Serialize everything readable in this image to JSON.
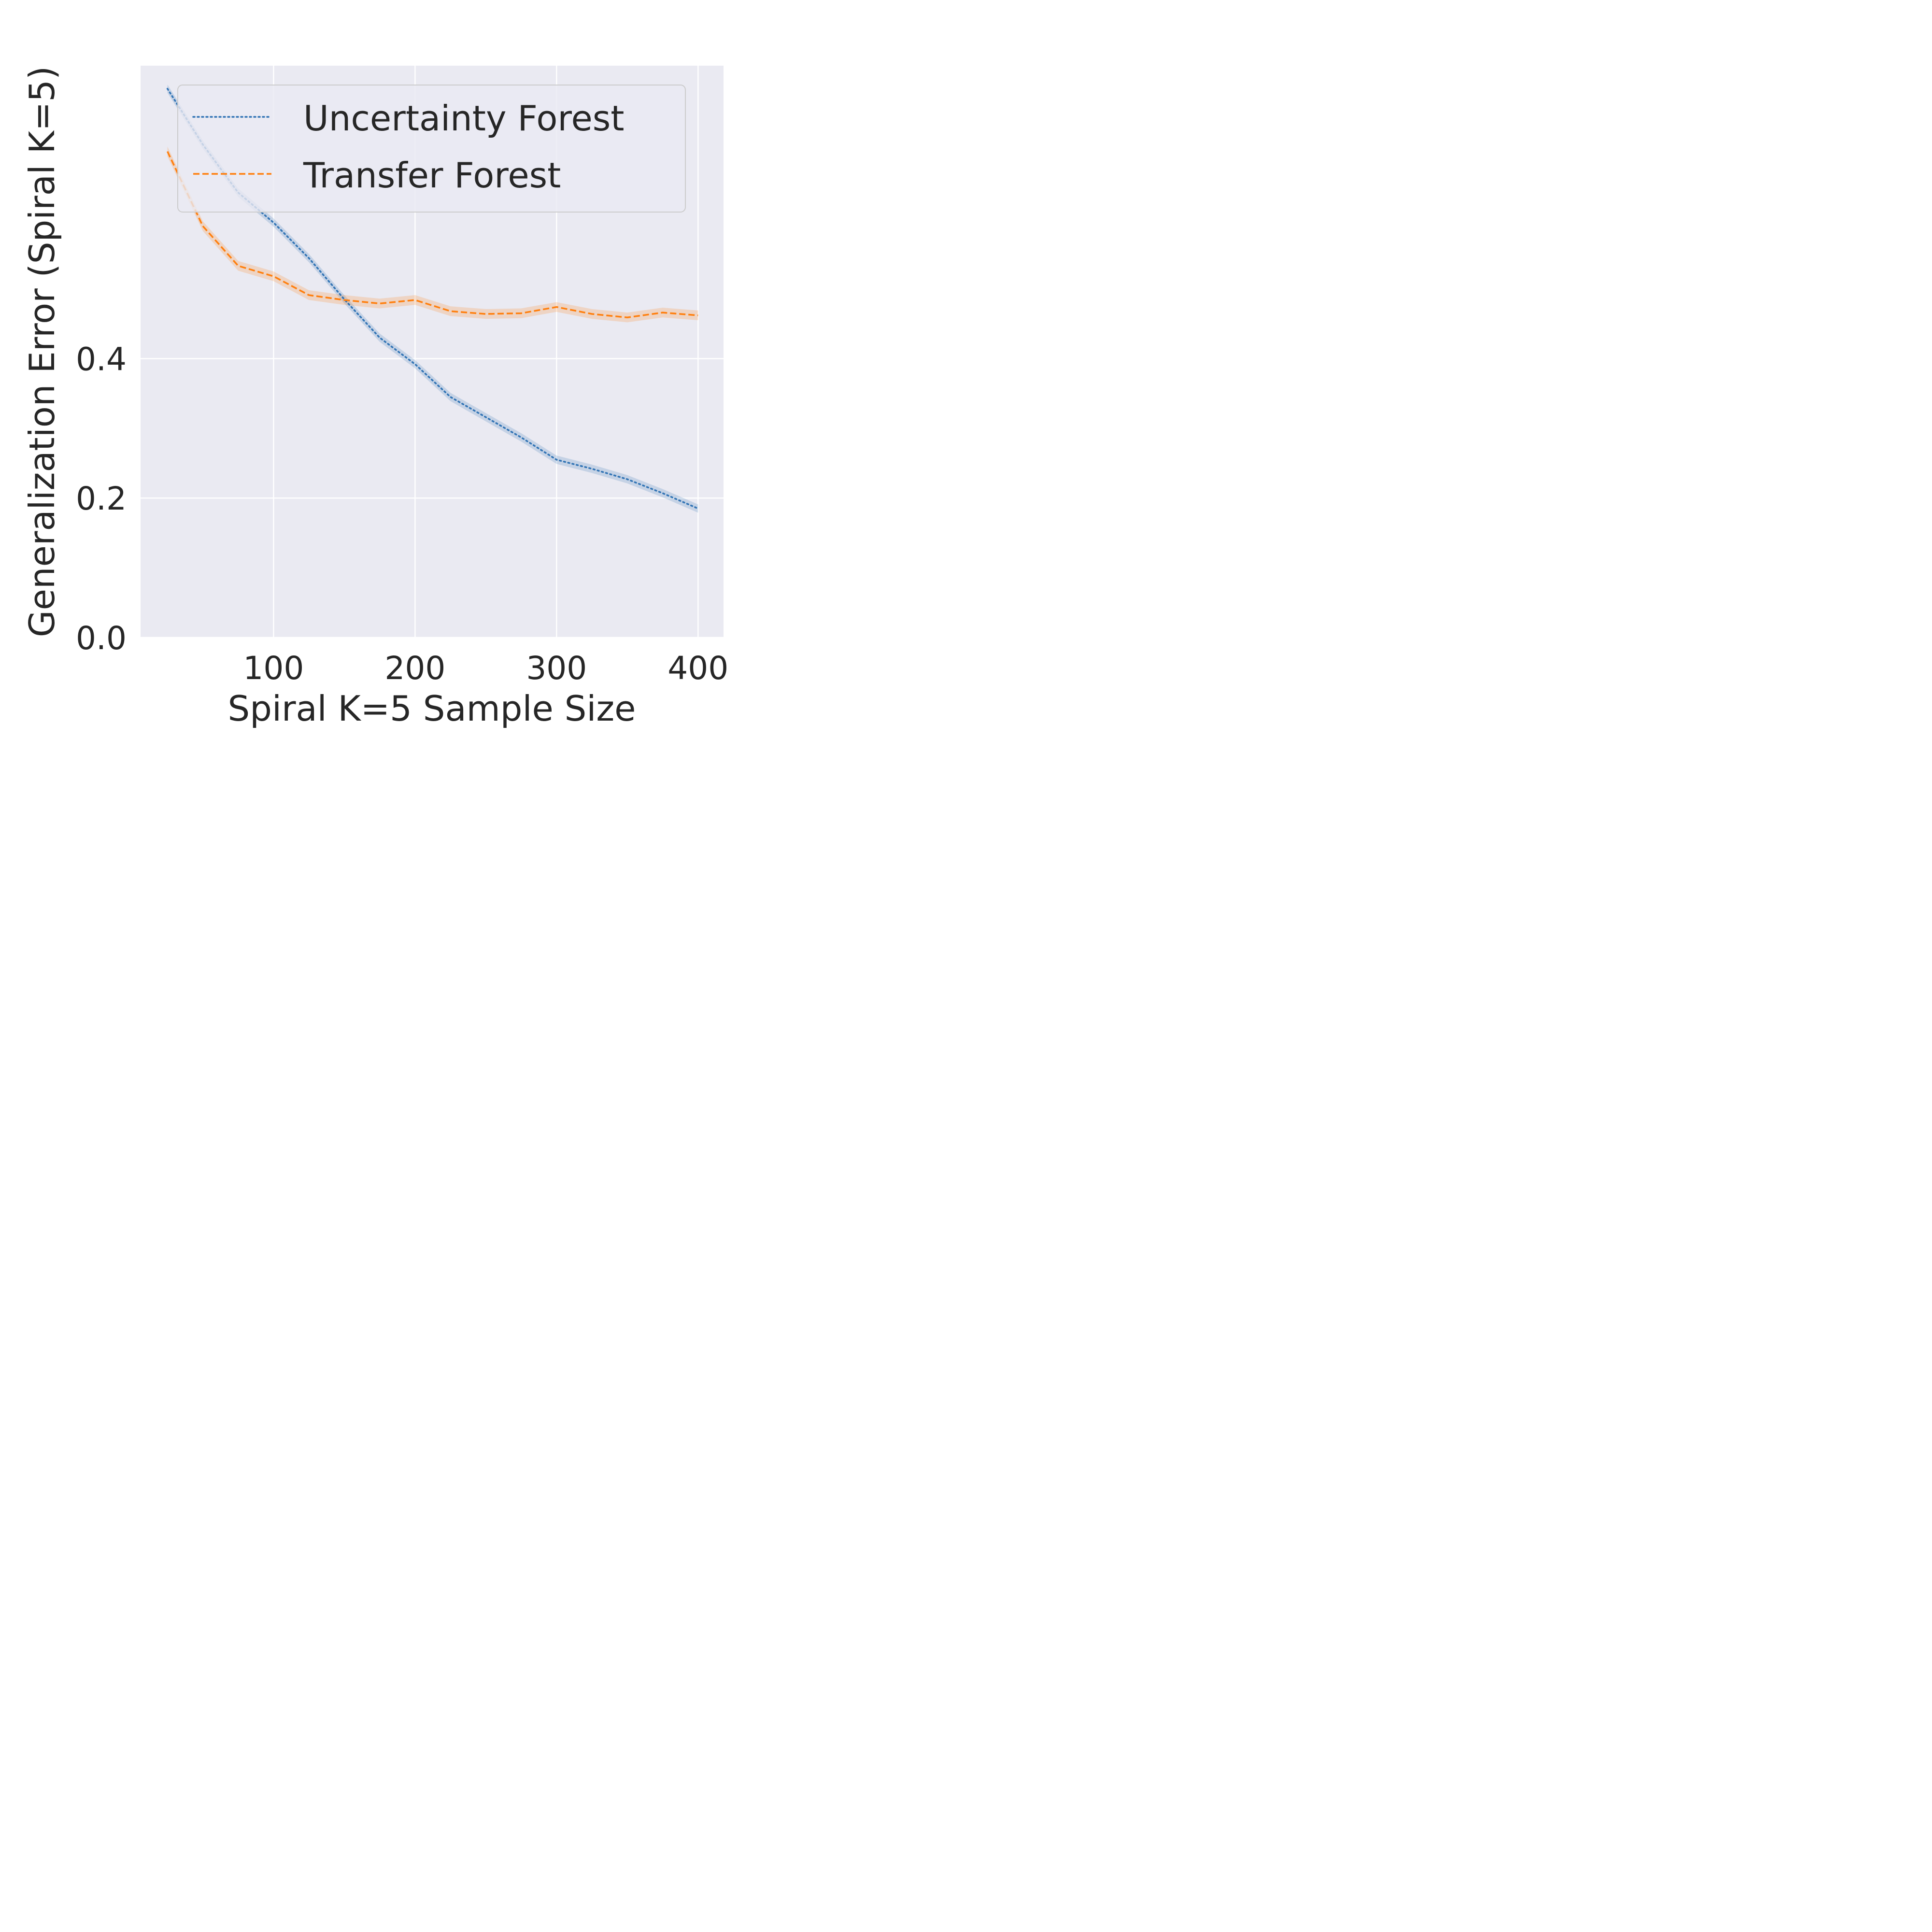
{
  "chart_data": {
    "type": "line",
    "xlabel": "Spiral K=5 Sample Size",
    "ylabel": "Generalization Error (Spiral K=5)",
    "xlim": [
      6,
      418
    ],
    "ylim": [
      0,
      0.82
    ],
    "xticks": [
      100,
      200,
      300,
      400
    ],
    "xtick_labels": [
      "100",
      "200",
      "300",
      "400"
    ],
    "yticks": [
      0.0,
      0.2,
      0.4
    ],
    "ytick_labels": [
      "0.0",
      "0.2",
      "0.4"
    ],
    "grid": true,
    "legend_position": "top-right",
    "x": [
      25,
      50,
      75,
      100,
      125,
      150,
      175,
      200,
      225,
      250,
      275,
      300,
      325,
      350,
      375,
      400
    ],
    "series": [
      {
        "name": "Uncertainty Forest",
        "color": "#3274b5",
        "style": "dotted",
        "values": [
          0.787,
          0.707,
          0.638,
          0.595,
          0.544,
          0.485,
          0.43,
          0.392,
          0.345,
          0.316,
          0.287,
          0.255,
          0.242,
          0.227,
          0.207,
          0.185
        ],
        "band": 0.006
      },
      {
        "name": "Transfer Forest",
        "color": "#ff7f0e",
        "style": "dashed",
        "values": [
          0.697,
          0.59,
          0.533,
          0.518,
          0.491,
          0.484,
          0.479,
          0.484,
          0.468,
          0.464,
          0.465,
          0.474,
          0.464,
          0.459,
          0.466,
          0.462
        ],
        "band": 0.007
      }
    ]
  }
}
